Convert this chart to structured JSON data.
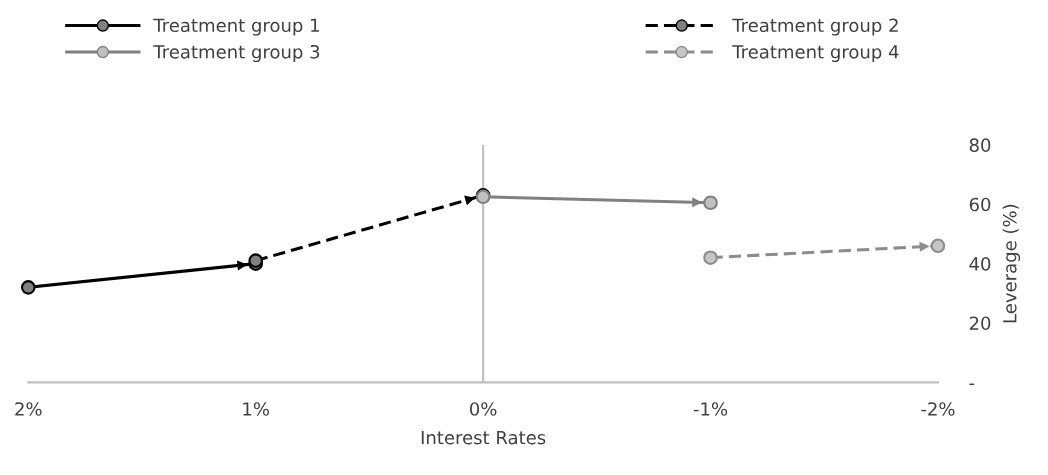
{
  "chart_data": {
    "type": "line",
    "xlabel": "Interest Rates",
    "ylabel": "Leverage (%)",
    "xlim": [
      2,
      -2
    ],
    "xticks": [
      {
        "value": 2,
        "label": "2%"
      },
      {
        "value": 1,
        "label": "1%"
      },
      {
        "value": 0,
        "label": "0%"
      },
      {
        "value": -1,
        "label": "-1%"
      },
      {
        "value": -2,
        "label": "-2%"
      }
    ],
    "ylim": [
      0,
      80
    ],
    "yticks": [
      {
        "value": 0,
        "label": "-"
      },
      20,
      40,
      60,
      80
    ],
    "grid": false,
    "legend": "top",
    "marker": "circle",
    "ref_lines": [
      {
        "axis": "x",
        "value": 0,
        "color": "#bfbfbf"
      }
    ],
    "series": [
      {
        "name": "Treatment group 1",
        "color": "#000000",
        "line_style": "solid",
        "x": [
          2,
          1
        ],
        "values": [
          32,
          40
        ]
      },
      {
        "name": "Treatment group 2",
        "color": "#000000",
        "line_style": "dashed",
        "x": [
          1,
          0
        ],
        "values": [
          41,
          63
        ]
      },
      {
        "name": "Treatment group 3",
        "color": "#808080",
        "line_style": "solid",
        "x": [
          0,
          -1
        ],
        "values": [
          62.5,
          60.5
        ]
      },
      {
        "name": "Treatment group 4",
        "color": "#8c8c8c",
        "line_style": "dashed",
        "x": [
          -1,
          -2
        ],
        "values": [
          42,
          46
        ]
      }
    ]
  }
}
